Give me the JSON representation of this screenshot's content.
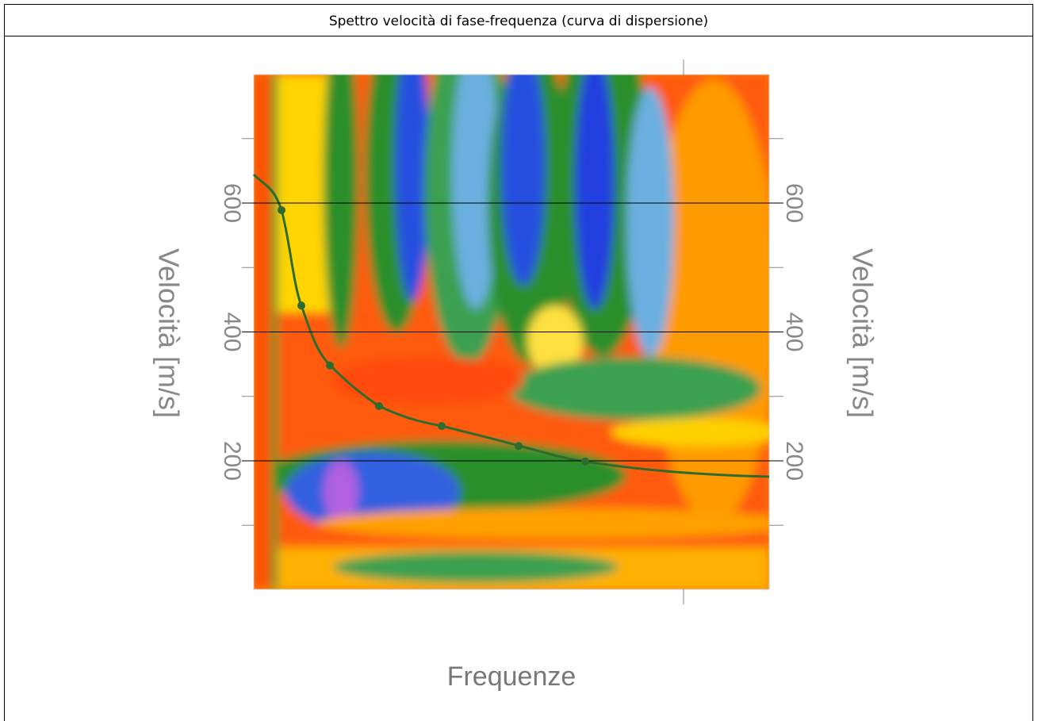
{
  "header": {
    "title": "Spettro velocità di fase-frequenza (curva di dispersione)"
  },
  "chart_data": {
    "type": "dispersion",
    "xlabel": "Frequenze",
    "ylabel": "Velocità [m/s]",
    "ylim": [
      0,
      800
    ],
    "yticks": [
      200,
      400,
      600
    ],
    "yminor_ticks": [
      100,
      300,
      500,
      700
    ],
    "grid": true,
    "series": [
      {
        "color": "#2e6b2e",
        "values": [
          589,
          441,
          348,
          285,
          254,
          223,
          199
        ]
      }
    ]
  }
}
